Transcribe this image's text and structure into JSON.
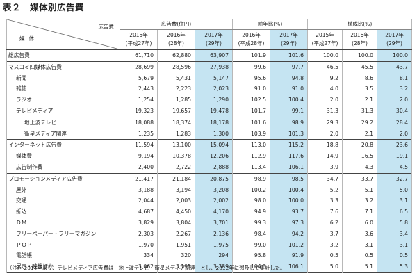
{
  "title": "表２　媒体別広告費",
  "header": {
    "corner_top": "広告費",
    "corner_bottom": "媒体",
    "groups": [
      "広告費(億円)",
      "前年比(%)",
      "構成比(%)"
    ],
    "years": [
      [
        "2015年",
        "(平成27年)"
      ],
      [
        "2016年",
        "(28年)"
      ],
      [
        "2017年",
        "(29年)"
      ],
      [
        "2016年",
        "(平成28年)"
      ],
      [
        "2017年",
        "(29年)"
      ],
      [
        "2015年",
        "(平成27年)"
      ],
      [
        "2016年",
        "(28年)"
      ],
      [
        "2017年",
        "(29年)"
      ]
    ]
  },
  "rows": [
    {
      "label": "総広告費",
      "indent": 0,
      "sep": "sep2",
      "values": [
        "61,710",
        "62,880",
        "63,907",
        "101.9",
        "101.6",
        "100.0",
        "100.0",
        "100.0"
      ]
    },
    {
      "label": "マスコミ四媒体広告費",
      "indent": 0,
      "sep": "sep2",
      "values": [
        "28,699",
        "28,596",
        "27,938",
        "99.6",
        "97.7",
        "46.5",
        "45.5",
        "43.7"
      ]
    },
    {
      "label": "新聞",
      "indent": 1,
      "sep": "",
      "values": [
        "5,679",
        "5,431",
        "5,147",
        "95.6",
        "94.8",
        "9.2",
        "8.6",
        "8.1"
      ]
    },
    {
      "label": "雑誌",
      "indent": 1,
      "sep": "",
      "values": [
        "2,443",
        "2,223",
        "2,023",
        "91.0",
        "91.0",
        "4.0",
        "3.5",
        "3.2"
      ]
    },
    {
      "label": "ラジオ",
      "indent": 1,
      "sep": "",
      "values": [
        "1,254",
        "1,285",
        "1,290",
        "102.5",
        "100.4",
        "2.0",
        "2.1",
        "2.0"
      ]
    },
    {
      "label": "テレビメディア",
      "indent": 1,
      "sep": "",
      "values": [
        "19,323",
        "19,657",
        "19,478",
        "101.7",
        "99.1",
        "31.3",
        "31.3",
        "30.4"
      ]
    },
    {
      "label": "地上波テレビ",
      "indent": 2,
      "sep": "sep",
      "values": [
        "18,088",
        "18,374",
        "18,178",
        "101.6",
        "98.9",
        "29.3",
        "29.2",
        "28.4"
      ]
    },
    {
      "label": "衛星メディア関連",
      "indent": 2,
      "sep": "",
      "values": [
        "1,235",
        "1,283",
        "1,300",
        "103.9",
        "101.3",
        "2.0",
        "2.1",
        "2.0"
      ]
    },
    {
      "label": "インターネット広告費",
      "indent": 0,
      "sep": "sep2",
      "values": [
        "11,594",
        "13,100",
        "15,094",
        "113.0",
        "115.2",
        "18.8",
        "20.8",
        "23.6"
      ]
    },
    {
      "label": "媒体費",
      "indent": 1,
      "sep": "",
      "values": [
        "9,194",
        "10,378",
        "12,206",
        "112.9",
        "117.6",
        "14.9",
        "16.5",
        "19.1"
      ]
    },
    {
      "label": "広告制作費",
      "indent": 1,
      "sep": "",
      "values": [
        "2,400",
        "2,722",
        "2,888",
        "113.4",
        "106.1",
        "3.9",
        "4.3",
        "4.5"
      ]
    },
    {
      "label": "プロモーションメディア広告費",
      "indent": 0,
      "sep": "sep2",
      "values": [
        "21,417",
        "21,184",
        "20,875",
        "98.9",
        "98.5",
        "34.7",
        "33.7",
        "32.7"
      ]
    },
    {
      "label": "屋外",
      "indent": 1,
      "sep": "",
      "values": [
        "3,188",
        "3,194",
        "3,208",
        "100.2",
        "100.4",
        "5.2",
        "5.1",
        "5.0"
      ]
    },
    {
      "label": "交通",
      "indent": 1,
      "sep": "",
      "values": [
        "2,044",
        "2,003",
        "2,002",
        "98.0",
        "100.0",
        "3.3",
        "3.2",
        "3.1"
      ]
    },
    {
      "label": "折込",
      "indent": 1,
      "sep": "",
      "values": [
        "4,687",
        "4,450",
        "4,170",
        "94.9",
        "93.7",
        "7.6",
        "7.1",
        "6.5"
      ]
    },
    {
      "label": "ＤＭ",
      "indent": 1,
      "sep": "",
      "values": [
        "3,829",
        "3,804",
        "3,701",
        "99.3",
        "97.3",
        "6.2",
        "6.0",
        "5.8"
      ]
    },
    {
      "label": "フリーペーパー・フリーマガジン",
      "indent": 1,
      "sep": "",
      "values": [
        "2,303",
        "2,267",
        "2,136",
        "98.4",
        "94.2",
        "3.7",
        "3.6",
        "3.4"
      ]
    },
    {
      "label": "ＰＯＰ",
      "indent": 1,
      "sep": "",
      "values": [
        "1,970",
        "1,951",
        "1,975",
        "99.0",
        "101.2",
        "3.2",
        "3.1",
        "3.1"
      ]
    },
    {
      "label": "電話帳",
      "indent": 1,
      "sep": "",
      "values": [
        "334",
        "320",
        "294",
        "95.8",
        "91.9",
        "0.5",
        "0.5",
        "0.5"
      ]
    },
    {
      "label": "展示・映像ほか",
      "indent": 1,
      "sep": "",
      "values": [
        "3,062",
        "3,195",
        "3,389",
        "104.3",
        "106.1",
        "5.0",
        "5.1",
        "5.3"
      ]
    }
  ],
  "note": "（注） 2014年より、テレビメディア広告費は「地上波テレビ＋衛星メディア関連」とし、2012年に遡及して集計した。",
  "colors": {
    "highlight": "#c5e4f2"
  }
}
